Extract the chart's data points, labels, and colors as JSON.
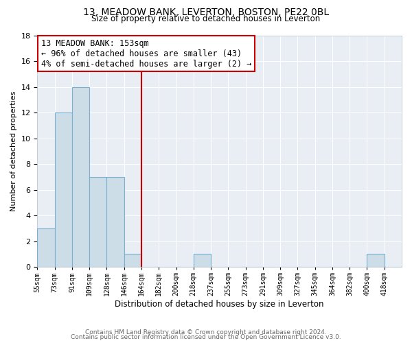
{
  "title": "13, MEADOW BANK, LEVERTON, BOSTON, PE22 0BL",
  "subtitle": "Size of property relative to detached houses in Leverton",
  "xlabel": "Distribution of detached houses by size in Leverton",
  "ylabel": "Number of detached properties",
  "footnote1": "Contains HM Land Registry data © Crown copyright and database right 2024.",
  "footnote2": "Contains public sector information licensed under the Open Government Licence v3.0.",
  "bin_labels": [
    "55sqm",
    "73sqm",
    "91sqm",
    "109sqm",
    "128sqm",
    "146sqm",
    "164sqm",
    "182sqm",
    "200sqm",
    "218sqm",
    "237sqm",
    "255sqm",
    "273sqm",
    "291sqm",
    "309sqm",
    "327sqm",
    "345sqm",
    "364sqm",
    "382sqm",
    "400sqm",
    "418sqm"
  ],
  "bar_values": [
    3,
    12,
    14,
    7,
    7,
    1,
    0,
    0,
    0,
    1,
    0,
    0,
    0,
    0,
    0,
    0,
    0,
    0,
    0,
    1,
    0
  ],
  "bar_color": "#ccdde8",
  "bar_edge_color": "#7aafd4",
  "grid_color": "#ccdde8",
  "vline_x": 6,
  "vline_color": "#cc0000",
  "annotation_line1": "13 MEADOW BANK: 153sqm",
  "annotation_line2": "← 96% of detached houses are smaller (43)",
  "annotation_line3": "4% of semi-detached houses are larger (2) →",
  "annotation_box_color": "#ffffff",
  "annotation_box_edge": "#cc0000",
  "ylim": [
    0,
    18
  ],
  "yticks": [
    0,
    2,
    4,
    6,
    8,
    10,
    12,
    14,
    16,
    18
  ],
  "bg_color": "#e8eef4"
}
